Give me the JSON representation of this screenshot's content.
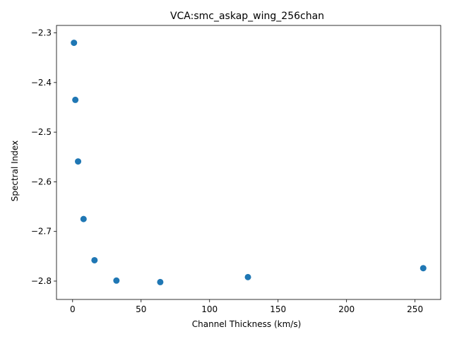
{
  "chart_data": {
    "type": "scatter",
    "title": "VCA:smc_askap_wing_256chan",
    "xlabel": "Channel Thickness (km/s)",
    "ylabel": "Spectral Index",
    "xlim": [
      -11.75,
      268.75
    ],
    "ylim": [
      -2.837,
      -2.285
    ],
    "xticks": [
      0,
      50,
      100,
      150,
      200,
      250
    ],
    "yticks": [
      -2.8,
      -2.7,
      -2.6,
      -2.5,
      -2.4,
      -2.3
    ],
    "xtick_labels": [
      "0",
      "50",
      "100",
      "150",
      "200",
      "250"
    ],
    "ytick_labels": [
      "−2.8",
      "−2.7",
      "−2.6",
      "−2.5",
      "−2.4",
      "−2.3"
    ],
    "grid": false,
    "marker_color": "#1f77b4",
    "points": [
      {
        "x": 1,
        "y": -2.32
      },
      {
        "x": 2,
        "y": -2.435
      },
      {
        "x": 4,
        "y": -2.559
      },
      {
        "x": 8,
        "y": -2.675
      },
      {
        "x": 16,
        "y": -2.758
      },
      {
        "x": 32,
        "y": -2.799
      },
      {
        "x": 64,
        "y": -2.802
      },
      {
        "x": 128,
        "y": -2.792
      },
      {
        "x": 256,
        "y": -2.774
      }
    ]
  }
}
